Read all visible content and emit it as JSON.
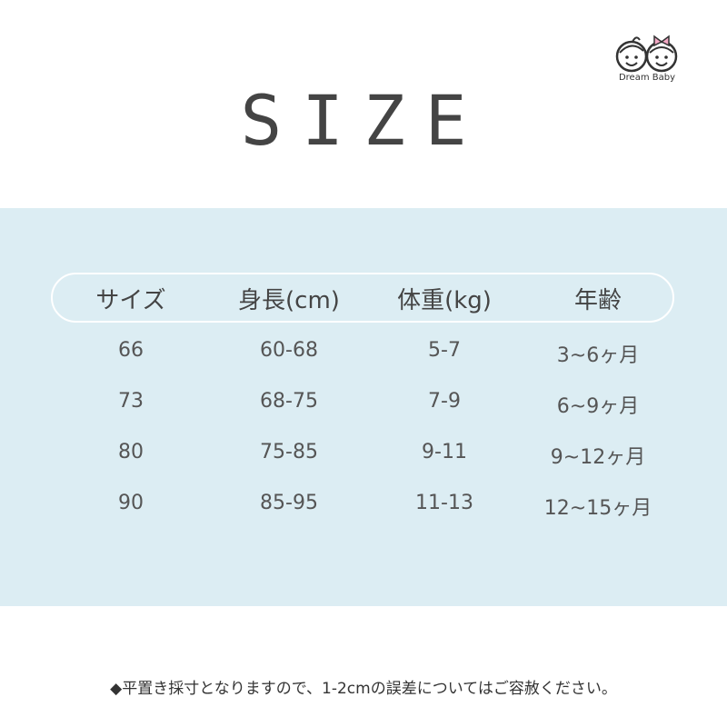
{
  "brand": {
    "logo_text": "Dream Baby",
    "bow_color": "#f2a7c3"
  },
  "title": "SIZE",
  "table": {
    "headers": [
      "サイズ",
      "身長(cm)",
      "体重(kg)",
      "年齢"
    ],
    "rows": [
      [
        "66",
        "60-68",
        "5-7",
        "3~6ヶ月"
      ],
      [
        "73",
        "68-75",
        "7-9",
        "6~9ヶ月"
      ],
      [
        "80",
        "75-85",
        "9-11",
        "9~12ヶ月"
      ],
      [
        "90",
        "85-95",
        "11-13",
        "12~15ヶ月"
      ]
    ]
  },
  "note": "◆平置き採寸となりますので、1-2cmの誤差についてはご容赦ください。",
  "colors": {
    "band": "#dcedf3",
    "text": "#555555"
  }
}
